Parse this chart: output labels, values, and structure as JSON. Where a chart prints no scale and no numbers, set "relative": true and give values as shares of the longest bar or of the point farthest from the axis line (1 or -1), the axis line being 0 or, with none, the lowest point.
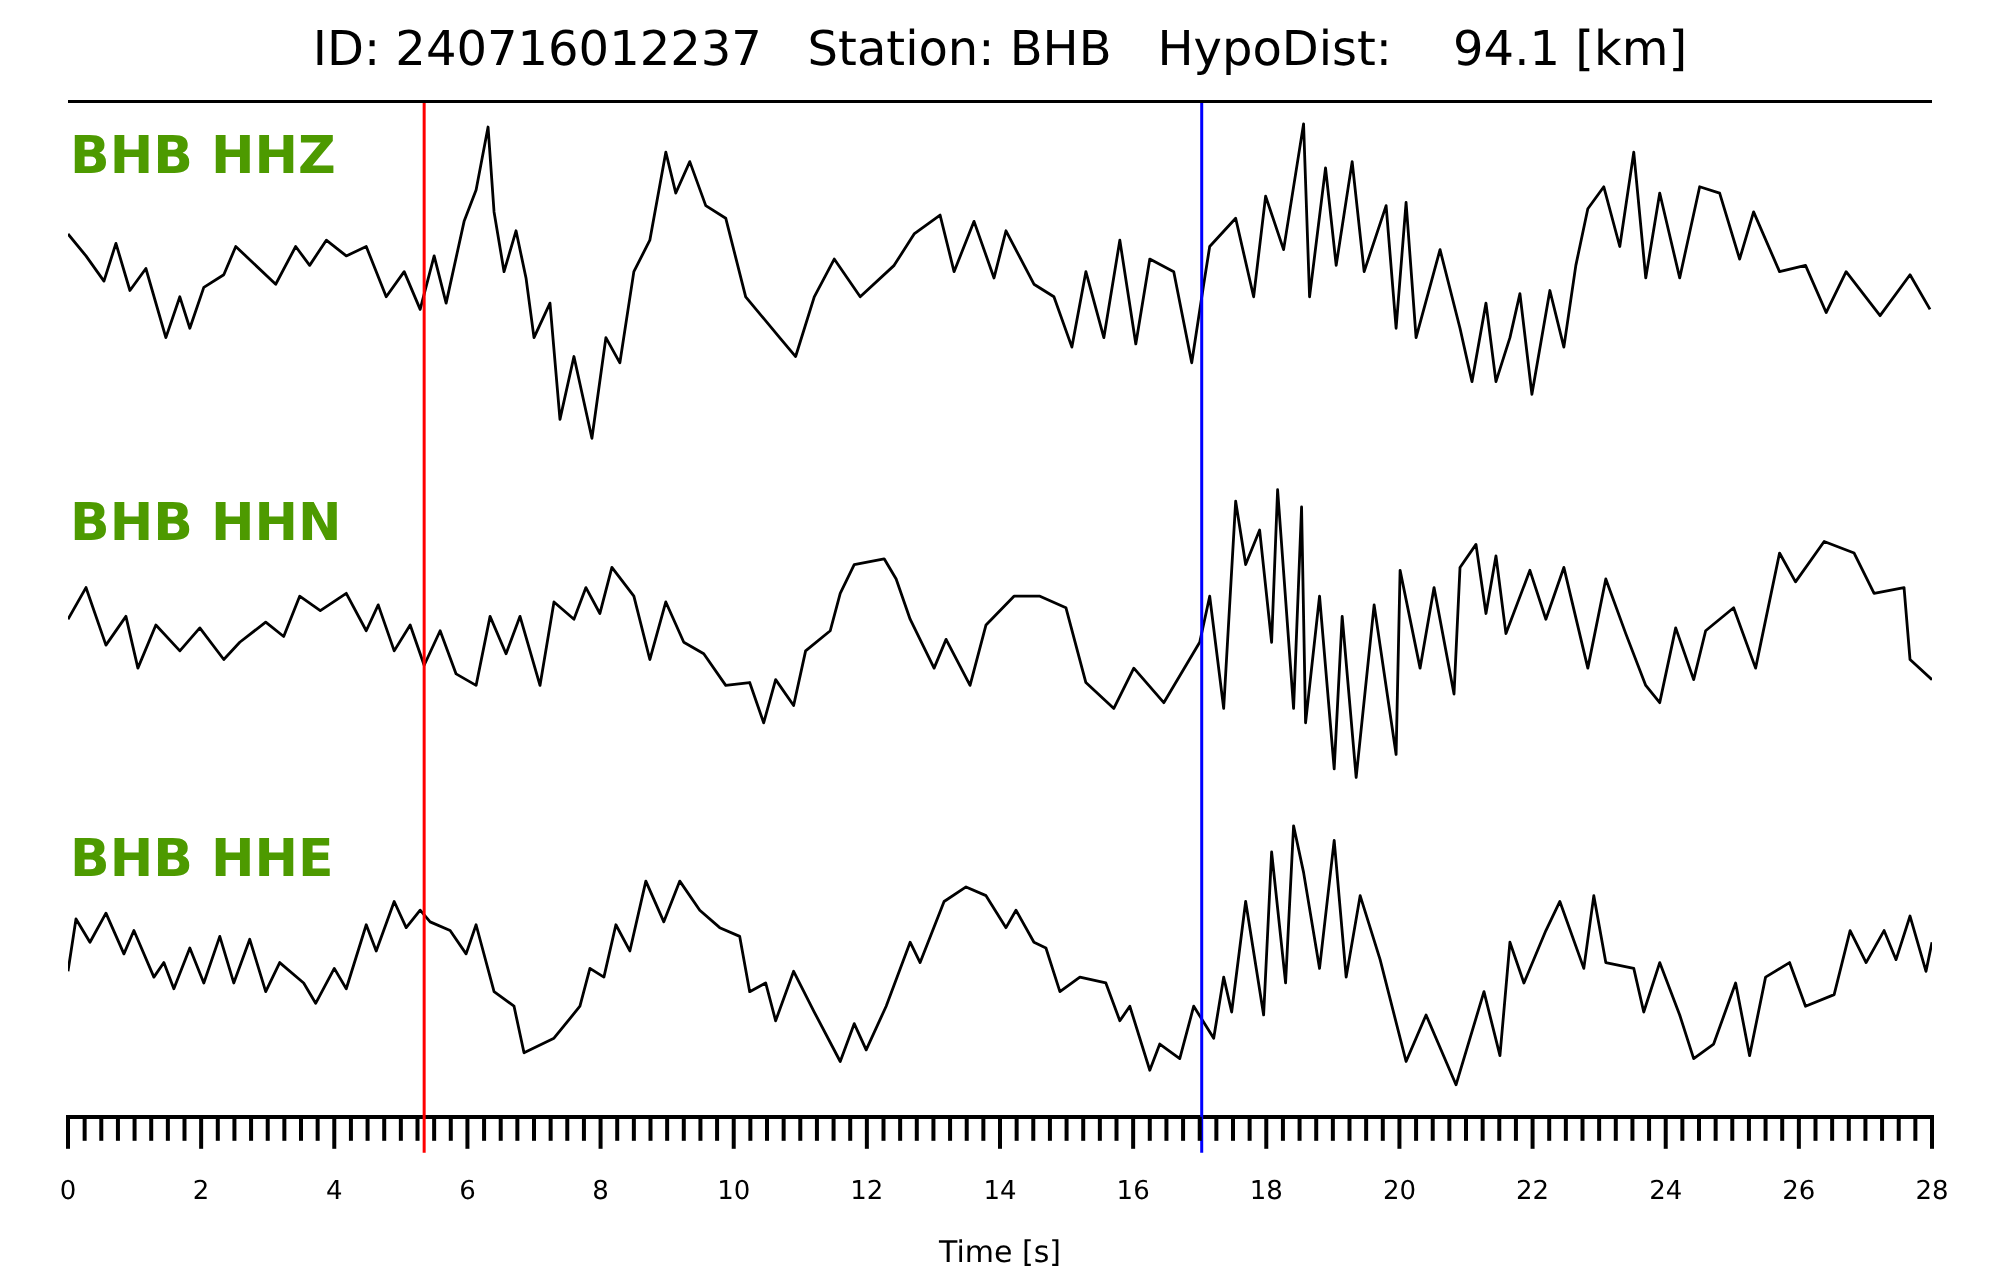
{
  "chart_data": [
    {
      "type": "line",
      "title": "ID: 240716012237   Station: BHB   HypoDist:    94.1 [km]",
      "relative": true,
      "xlim": [
        0,
        28
      ],
      "tick_labels": false,
      "ref_lines": [
        {
          "axis": "x",
          "value": 5.35,
          "color": "#ff0000"
        },
        {
          "axis": "x",
          "value": 17.03,
          "color": "#0000ff"
        }
      ],
      "series": [
        {
          "name": "BHB HHZ",
          "color": "#000000",
          "x": [
            0,
            0.27,
            0.54,
            0.72,
            0.93,
            1.17,
            1.47,
            1.68,
            1.83,
            2.04,
            2.34,
            2.52,
            3.12,
            3.42,
            3.63,
            3.88,
            4.18,
            4.48,
            4.78,
            5.05,
            5.29,
            5.5,
            5.68,
            5.95,
            6.13,
            6.31,
            6.4,
            6.55,
            6.73,
            6.88,
            7.0,
            7.24,
            7.39,
            7.6,
            7.87,
            8.08,
            8.29,
            8.5,
            8.74,
            8.98,
            9.13,
            9.34,
            9.58,
            9.88,
            10.18,
            10.69,
            10.93,
            11.21,
            11.51,
            11.9,
            12.41,
            12.71,
            13.1,
            13.31,
            13.61,
            13.91,
            14.09,
            14.51,
            14.81,
            15.08,
            15.29,
            15.56,
            15.8,
            16.04,
            16.25,
            16.61,
            16.88,
            17.06,
            17.15,
            17.54,
            17.81,
            17.99,
            18.26,
            18.56,
            18.65,
            18.89,
            19.05,
            19.29,
            19.47,
            19.8,
            19.95,
            20.1,
            20.25,
            20.61,
            20.91,
            21.09,
            21.3,
            21.45,
            21.66,
            21.81,
            21.99,
            22.26,
            22.47,
            22.65,
            22.83,
            23.07,
            23.31,
            23.52,
            23.7,
            23.91,
            24.21,
            24.51,
            24.81,
            25.11,
            25.32,
            25.71,
            26.1,
            26.41,
            26.71,
            27.22,
            27.67,
            27.97
          ],
          "values": [
            0.65,
            0.58,
            0.5,
            0.62,
            0.47,
            0.54,
            0.32,
            0.45,
            0.35,
            0.48,
            0.52,
            0.61,
            0.49,
            0.61,
            0.55,
            0.63,
            0.58,
            0.61,
            0.45,
            0.53,
            0.41,
            0.58,
            0.43,
            0.69,
            0.79,
            0.99,
            0.72,
            0.53,
            0.66,
            0.51,
            0.32,
            0.43,
            0.06,
            0.26,
            0,
            0.32,
            0.24,
            0.53,
            0.63,
            0.91,
            0.78,
            0.88,
            0.74,
            0.7,
            0.45,
            0.32,
            0.26,
            0.45,
            0.57,
            0.45,
            0.55,
            0.65,
            0.71,
            0.53,
            0.69,
            0.51,
            0.66,
            0.49,
            0.45,
            0.29,
            0.53,
            0.32,
            0.63,
            0.3,
            0.57,
            0.53,
            0.24,
            0.49,
            0.61,
            0.7,
            0.45,
            0.77,
            0.6,
            1.0,
            0.45,
            0.86,
            0.55,
            0.88,
            0.53,
            0.74,
            0.35,
            0.75,
            0.32,
            0.6,
            0.35,
            0.18,
            0.43,
            0.18,
            0.32,
            0.46,
            0.14,
            0.47,
            0.29,
            0.55,
            0.73,
            0.8,
            0.61,
            0.91,
            0.51,
            0.78,
            0.51,
            0.8,
            0.78,
            0.57,
            0.72,
            0.53,
            0.55,
            0.4,
            0.53,
            0.39,
            0.52,
            0.41
          ]
        }
      ]
    },
    {
      "type": "line",
      "relative": true,
      "xlim": [
        0,
        28
      ],
      "tick_labels": false,
      "ref_lines": [
        {
          "axis": "x",
          "value": 5.35,
          "color": "#ff0000"
        },
        {
          "axis": "x",
          "value": 17.03,
          "color": "#0000ff"
        }
      ],
      "series": [
        {
          "name": "BHB HHN",
          "color": "#000000",
          "x": [
            0,
            0.27,
            0.57,
            0.87,
            1.05,
            1.32,
            1.68,
            1.98,
            2.34,
            2.58,
            2.97,
            3.24,
            3.48,
            3.79,
            4.18,
            4.48,
            4.66,
            4.9,
            5.14,
            5.35,
            5.59,
            5.83,
            6.13,
            6.34,
            6.58,
            6.79,
            7.09,
            7.3,
            7.6,
            7.78,
            7.99,
            8.17,
            8.5,
            8.74,
            8.98,
            9.25,
            9.55,
            9.88,
            10.24,
            10.45,
            10.63,
            10.9,
            11.08,
            11.45,
            11.6,
            11.81,
            12.26,
            12.44,
            12.65,
            13.01,
            13.19,
            13.55,
            13.79,
            14.21,
            14.6,
            14.99,
            15.29,
            15.71,
            16.01,
            16.46,
            17.0,
            17.15,
            17.36,
            17.54,
            17.69,
            17.9,
            18.08,
            18.17,
            18.41,
            18.53,
            18.59,
            18.8,
            19.02,
            19.14,
            19.35,
            19.62,
            19.95,
            20.01,
            20.31,
            20.52,
            20.82,
            20.91,
            21.15,
            21.3,
            21.45,
            21.6,
            21.96,
            22.2,
            22.47,
            22.83,
            23.1,
            23.4,
            23.7,
            23.91,
            24.15,
            24.42,
            24.6,
            25.02,
            25.35,
            25.71,
            25.95,
            26.38,
            26.83,
            27.13,
            27.58,
            27.67,
            28.0
          ],
          "values": [
            0.55,
            0.66,
            0.46,
            0.56,
            0.38,
            0.53,
            0.44,
            0.52,
            0.41,
            0.47,
            0.54,
            0.49,
            0.63,
            0.58,
            0.64,
            0.51,
            0.6,
            0.44,
            0.53,
            0.39,
            0.51,
            0.36,
            0.32,
            0.56,
            0.43,
            0.56,
            0.32,
            0.61,
            0.55,
            0.66,
            0.57,
            0.73,
            0.63,
            0.41,
            0.61,
            0.47,
            0.43,
            0.32,
            0.33,
            0.19,
            0.34,
            0.25,
            0.44,
            0.51,
            0.64,
            0.74,
            0.76,
            0.69,
            0.55,
            0.38,
            0.48,
            0.32,
            0.53,
            0.63,
            0.63,
            0.59,
            0.33,
            0.24,
            0.38,
            0.26,
            0.47,
            0.63,
            0.24,
            0.96,
            0.74,
            0.86,
            0.47,
            1.0,
            0.24,
            0.94,
            0.19,
            0.63,
            0.03,
            0.56,
            0,
            0.6,
            0.08,
            0.72,
            0.38,
            0.66,
            0.29,
            0.73,
            0.81,
            0.57,
            0.77,
            0.5,
            0.72,
            0.55,
            0.73,
            0.38,
            0.69,
            0.5,
            0.32,
            0.26,
            0.52,
            0.34,
            0.51,
            0.59,
            0.38,
            0.78,
            0.68,
            0.82,
            0.78,
            0.64,
            0.66,
            0.41,
            0.34
          ]
        }
      ]
    },
    {
      "type": "line",
      "relative": true,
      "xlim": [
        0,
        28
      ],
      "tick_labels": "x",
      "xlabel": "Time [s]",
      "xticks": [
        0,
        {
          "value": 0.25,
          "label": null
        },
        {
          "value": 0.5,
          "label": null
        },
        {
          "value": 0.75,
          "label": null
        },
        {
          "value": 1,
          "label": null
        },
        {
          "value": 1.25,
          "label": null
        },
        {
          "value": 1.5,
          "label": null
        },
        {
          "value": 1.75,
          "label": null
        },
        2,
        {
          "value": 2.25,
          "label": null
        },
        {
          "value": 2.5,
          "label": null
        },
        {
          "value": 2.75,
          "label": null
        },
        {
          "value": 3,
          "label": null
        },
        {
          "value": 3.25,
          "label": null
        },
        {
          "value": 3.5,
          "label": null
        },
        {
          "value": 3.75,
          "label": null
        },
        4,
        {
          "value": 4.25,
          "label": null
        },
        {
          "value": 4.5,
          "label": null
        },
        {
          "value": 4.75,
          "label": null
        },
        {
          "value": 5,
          "label": null
        },
        {
          "value": 5.25,
          "label": null
        },
        {
          "value": 5.5,
          "label": null
        },
        {
          "value": 5.75,
          "label": null
        },
        6,
        {
          "value": 6.25,
          "label": null
        },
        {
          "value": 6.5,
          "label": null
        },
        {
          "value": 6.75,
          "label": null
        },
        {
          "value": 7,
          "label": null
        },
        {
          "value": 7.25,
          "label": null
        },
        {
          "value": 7.5,
          "label": null
        },
        {
          "value": 7.75,
          "label": null
        },
        8,
        {
          "value": 8.25,
          "label": null
        },
        {
          "value": 8.5,
          "label": null
        },
        {
          "value": 8.75,
          "label": null
        },
        {
          "value": 9,
          "label": null
        },
        {
          "value": 9.25,
          "label": null
        },
        {
          "value": 9.5,
          "label": null
        },
        {
          "value": 9.75,
          "label": null
        },
        10,
        {
          "value": 10.25,
          "label": null
        },
        {
          "value": 10.5,
          "label": null
        },
        {
          "value": 10.75,
          "label": null
        },
        {
          "value": 11,
          "label": null
        },
        {
          "value": 11.25,
          "label": null
        },
        {
          "value": 11.5,
          "label": null
        },
        {
          "value": 11.75,
          "label": null
        },
        12,
        {
          "value": 12.25,
          "label": null
        },
        {
          "value": 12.5,
          "label": null
        },
        {
          "value": 12.75,
          "label": null
        },
        {
          "value": 13,
          "label": null
        },
        {
          "value": 13.25,
          "label": null
        },
        {
          "value": 13.5,
          "label": null
        },
        {
          "value": 13.75,
          "label": null
        },
        14,
        {
          "value": 14.25,
          "label": null
        },
        {
          "value": 14.5,
          "label": null
        },
        {
          "value": 14.75,
          "label": null
        },
        {
          "value": 15,
          "label": null
        },
        {
          "value": 15.25,
          "label": null
        },
        {
          "value": 15.5,
          "label": null
        },
        {
          "value": 15.75,
          "label": null
        },
        16,
        {
          "value": 16.25,
          "label": null
        },
        {
          "value": 16.5,
          "label": null
        },
        {
          "value": 16.75,
          "label": null
        },
        {
          "value": 17,
          "label": null
        },
        {
          "value": 17.25,
          "label": null
        },
        {
          "value": 17.5,
          "label": null
        },
        {
          "value": 17.75,
          "label": null
        },
        18,
        {
          "value": 18.25,
          "label": null
        },
        {
          "value": 18.5,
          "label": null
        },
        {
          "value": 18.75,
          "label": null
        },
        {
          "value": 19,
          "label": null
        },
        {
          "value": 19.25,
          "label": null
        },
        {
          "value": 19.5,
          "label": null
        },
        {
          "value": 19.75,
          "label": null
        },
        20,
        {
          "value": 20.25,
          "label": null
        },
        {
          "value": 20.5,
          "label": null
        },
        {
          "value": 20.75,
          "label": null
        },
        {
          "value": 21,
          "label": null
        },
        {
          "value": 21.25,
          "label": null
        },
        {
          "value": 21.5,
          "label": null
        },
        {
          "value": 21.75,
          "label": null
        },
        22,
        {
          "value": 22.25,
          "label": null
        },
        {
          "value": 22.5,
          "label": null
        },
        {
          "value": 22.75,
          "label": null
        },
        {
          "value": 23,
          "label": null
        },
        {
          "value": 23.25,
          "label": null
        },
        {
          "value": 23.5,
          "label": null
        },
        {
          "value": 23.75,
          "label": null
        },
        24,
        {
          "value": 24.25,
          "label": null
        },
        {
          "value": 24.5,
          "label": null
        },
        {
          "value": 24.75,
          "label": null
        },
        {
          "value": 25,
          "label": null
        },
        {
          "value": 25.25,
          "label": null
        },
        {
          "value": 25.5,
          "label": null
        },
        {
          "value": 25.75,
          "label": null
        },
        26,
        {
          "value": 26.25,
          "label": null
        },
        {
          "value": 26.5,
          "label": null
        },
        {
          "value": 26.75,
          "label": null
        },
        {
          "value": 27,
          "label": null
        },
        {
          "value": 27.25,
          "label": null
        },
        {
          "value": 27.5,
          "label": null
        },
        {
          "value": 27.75,
          "label": null
        },
        28
      ],
      "ref_lines": [
        {
          "axis": "x",
          "value": 5.35,
          "color": "#ff0000"
        },
        {
          "axis": "x",
          "value": 17.03,
          "color": "#0000ff"
        }
      ],
      "series": [
        {
          "name": "BHB HHE",
          "color": "#000000",
          "x": [
            0,
            0.12,
            0.33,
            0.57,
            0.84,
            0.99,
            1.29,
            1.44,
            1.59,
            1.83,
            2.04,
            2.28,
            2.49,
            2.73,
            2.97,
            3.18,
            3.54,
            3.72,
            4.0,
            4.18,
            4.48,
            4.63,
            4.9,
            5.08,
            5.29,
            5.44,
            5.74,
            5.98,
            6.13,
            6.4,
            6.7,
            6.85,
            7.3,
            7.69,
            7.84,
            8.05,
            8.23,
            8.44,
            8.68,
            8.95,
            9.19,
            9.49,
            9.79,
            10.09,
            10.24,
            10.48,
            10.63,
            10.9,
            11.21,
            11.6,
            11.81,
            11.99,
            12.29,
            12.65,
            12.8,
            13.16,
            13.49,
            13.79,
            14.09,
            14.24,
            14.51,
            14.69,
            14.9,
            15.2,
            15.59,
            15.8,
            15.95,
            16.25,
            16.4,
            16.7,
            16.91,
            17.21,
            17.36,
            17.48,
            17.69,
            17.96,
            18.08,
            18.29,
            18.41,
            18.56,
            18.8,
            19.02,
            19.2,
            19.41,
            19.71,
            20.1,
            20.4,
            20.85,
            21.27,
            21.51,
            21.66,
            21.87,
            22.2,
            22.41,
            22.77,
            22.92,
            23.1,
            23.52,
            23.67,
            23.91,
            24.21,
            24.42,
            24.72,
            25.05,
            25.26,
            25.5,
            25.86,
            26.1,
            26.53,
            26.77,
            27.01,
            27.28,
            27.46,
            27.67,
            27.91,
            28.0
          ],
          "values": [
            0.5,
            0.68,
            0.6,
            0.7,
            0.56,
            0.64,
            0.48,
            0.53,
            0.44,
            0.58,
            0.46,
            0.62,
            0.46,
            0.61,
            0.43,
            0.53,
            0.46,
            0.39,
            0.51,
            0.44,
            0.66,
            0.57,
            0.74,
            0.65,
            0.71,
            0.67,
            0.64,
            0.56,
            0.66,
            0.43,
            0.38,
            0.22,
            0.27,
            0.38,
            0.51,
            0.48,
            0.66,
            0.57,
            0.81,
            0.67,
            0.81,
            0.71,
            0.65,
            0.62,
            0.43,
            0.46,
            0.33,
            0.5,
            0.36,
            0.19,
            0.32,
            0.23,
            0.38,
            0.6,
            0.53,
            0.74,
            0.79,
            0.76,
            0.65,
            0.71,
            0.6,
            0.58,
            0.43,
            0.48,
            0.46,
            0.33,
            0.38,
            0.16,
            0.25,
            0.2,
            0.38,
            0.27,
            0.48,
            0.36,
            0.74,
            0.35,
            0.91,
            0.46,
            1.0,
            0.84,
            0.51,
            0.95,
            0.48,
            0.76,
            0.54,
            0.19,
            0.35,
            0.11,
            0.43,
            0.21,
            0.6,
            0.46,
            0.64,
            0.74,
            0.51,
            0.76,
            0.53,
            0.51,
            0.36,
            0.53,
            0.35,
            0.2,
            0.25,
            0.46,
            0.21,
            0.48,
            0.53,
            0.38,
            0.42,
            0.64,
            0.53,
            0.64,
            0.54,
            0.69,
            0.5,
            0.6
          ]
        }
      ]
    }
  ]
}
